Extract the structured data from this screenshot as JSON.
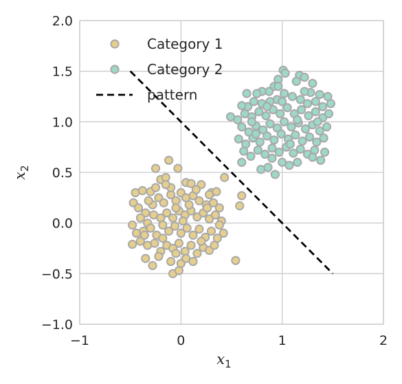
{
  "chart_data": {
    "type": "scatter",
    "title": "",
    "xlabel": {
      "base": "x",
      "sub": "1"
    },
    "ylabel": {
      "base": "x",
      "sub": "2"
    },
    "xlim": [
      -1,
      2
    ],
    "ylim": [
      -1,
      2
    ],
    "xticks": [
      -1,
      0,
      1,
      2
    ],
    "xtick_labels": [
      "−1",
      "0",
      "1",
      "2"
    ],
    "yticks": [
      -1,
      -0.5,
      0,
      0.5,
      1,
      1.5,
      2
    ],
    "ytick_labels": [
      "−1.0",
      "−0.5",
      "0.0",
      "0.5",
      "1.0",
      "1.5",
      "2.0"
    ],
    "grid": true,
    "legend_position": "top-left",
    "legend": [
      {
        "label": "Category 1",
        "kind": "marker",
        "color": "#e6cf8e"
      },
      {
        "label": "Category 2",
        "kind": "marker",
        "color": "#9dd8c8"
      },
      {
        "label": "pattern",
        "kind": "dashed-line",
        "color": "#000000"
      }
    ],
    "series": [
      {
        "name": "Category 1",
        "color": "#e6cf8e",
        "edge_color": "#a8a8a8",
        "points": [
          [
            -0.45,
            0.3
          ],
          [
            -0.38,
            0.32
          ],
          [
            -0.3,
            0.31
          ],
          [
            -0.25,
            0.54
          ],
          [
            -0.2,
            0.43
          ],
          [
            -0.15,
            0.45
          ],
          [
            -0.12,
            0.62
          ],
          [
            -0.03,
            0.54
          ],
          [
            0.05,
            0.4
          ],
          [
            0.1,
            0.39
          ],
          [
            0.2,
            0.38
          ],
          [
            0.3,
            0.3
          ],
          [
            0.35,
            0.31
          ],
          [
            0.43,
            0.45
          ],
          [
            -0.47,
            0.2
          ],
          [
            -0.42,
            0.15
          ],
          [
            -0.35,
            0.1
          ],
          [
            -0.28,
            0.18
          ],
          [
            -0.22,
            0.25
          ],
          [
            -0.17,
            0.2
          ],
          [
            -0.1,
            0.28
          ],
          [
            -0.05,
            0.22
          ],
          [
            0.0,
            0.3
          ],
          [
            0.05,
            0.25
          ],
          [
            0.12,
            0.27
          ],
          [
            0.18,
            0.22
          ],
          [
            0.25,
            0.18
          ],
          [
            0.32,
            0.2
          ],
          [
            0.38,
            0.15
          ],
          [
            -0.4,
            0.05
          ],
          [
            -0.33,
            0.0
          ],
          [
            -0.27,
            0.08
          ],
          [
            -0.2,
            0.05
          ],
          [
            -0.14,
            0.1
          ],
          [
            -0.08,
            0.05
          ],
          [
            -0.02,
            0.12
          ],
          [
            0.04,
            0.08
          ],
          [
            0.1,
            0.12
          ],
          [
            0.16,
            0.06
          ],
          [
            0.22,
            0.1
          ],
          [
            0.28,
            0.04
          ],
          [
            0.34,
            0.08
          ],
          [
            0.4,
            0.02
          ],
          [
            -0.48,
            -0.02
          ],
          [
            -0.44,
            -0.1
          ],
          [
            -0.37,
            -0.08
          ],
          [
            -0.3,
            -0.05
          ],
          [
            -0.24,
            -0.12
          ],
          [
            -0.18,
            -0.02
          ],
          [
            -0.12,
            -0.08
          ],
          [
            -0.06,
            -0.03
          ],
          [
            0.0,
            -0.1
          ],
          [
            0.06,
            -0.05
          ],
          [
            0.12,
            -0.12
          ],
          [
            0.18,
            -0.06
          ],
          [
            0.24,
            -0.14
          ],
          [
            0.3,
            -0.08
          ],
          [
            0.36,
            -0.15
          ],
          [
            0.42,
            -0.1
          ],
          [
            -0.48,
            -0.21
          ],
          [
            -0.4,
            -0.18
          ],
          [
            -0.33,
            -0.22
          ],
          [
            -0.26,
            -0.2
          ],
          [
            -0.2,
            -0.28
          ],
          [
            -0.14,
            -0.22
          ],
          [
            -0.08,
            -0.25
          ],
          [
            -0.02,
            -0.2
          ],
          [
            0.04,
            -0.28
          ],
          [
            0.1,
            -0.22
          ],
          [
            0.16,
            -0.3
          ],
          [
            0.22,
            -0.24
          ],
          [
            0.28,
            -0.27
          ],
          [
            0.33,
            -0.22
          ],
          [
            -0.35,
            -0.35
          ],
          [
            -0.28,
            -0.42
          ],
          [
            -0.22,
            -0.33
          ],
          [
            -0.1,
            -0.38
          ],
          [
            -0.05,
            -0.3
          ],
          [
            0.0,
            -0.4
          ],
          [
            0.05,
            -0.35
          ],
          [
            0.12,
            -0.38
          ],
          [
            -0.08,
            -0.5
          ],
          [
            -0.02,
            -0.47
          ],
          [
            0.54,
            -0.37
          ],
          [
            0.58,
            0.17
          ],
          [
            0.6,
            0.27
          ],
          [
            -0.25,
            0.35
          ],
          [
            -0.1,
            0.35
          ],
          [
            0.15,
            0.33
          ],
          [
            0.28,
            0.28
          ],
          [
            -0.32,
            0.22
          ],
          [
            0.08,
            0.18
          ],
          [
            -0.18,
            -0.15
          ],
          [
            0.2,
            -0.18
          ],
          [
            -0.36,
            -0.12
          ],
          [
            0.38,
            -0.02
          ],
          [
            0.02,
            0.02
          ],
          [
            -0.15,
            0.38
          ],
          [
            0.26,
            0.15
          ],
          [
            -0.05,
            0.15
          ]
        ]
      },
      {
        "name": "Category 2",
        "color": "#9dd8c8",
        "edge_color": "#a8a8a8",
        "points": [
          [
            1.01,
            1.51
          ],
          [
            1.03,
            1.48
          ],
          [
            1.17,
            1.46
          ],
          [
            1.22,
            1.44
          ],
          [
            1.14,
            1.4
          ],
          [
            0.96,
            1.42
          ],
          [
            0.92,
            1.35
          ],
          [
            0.87,
            1.3
          ],
          [
            0.8,
            1.3
          ],
          [
            0.75,
            1.28
          ],
          [
            0.65,
            1.28
          ],
          [
            1.3,
            1.38
          ],
          [
            1.28,
            1.29
          ],
          [
            1.37,
            1.27
          ],
          [
            1.45,
            1.25
          ],
          [
            1.48,
            1.18
          ],
          [
            1.4,
            1.15
          ],
          [
            1.33,
            1.2
          ],
          [
            1.25,
            1.18
          ],
          [
            1.18,
            1.22
          ],
          [
            1.1,
            1.25
          ],
          [
            1.02,
            1.28
          ],
          [
            0.95,
            1.22
          ],
          [
            0.88,
            1.2
          ],
          [
            0.8,
            1.18
          ],
          [
            0.72,
            1.2
          ],
          [
            0.66,
            1.15
          ],
          [
            0.6,
            1.16
          ],
          [
            0.49,
            1.05
          ],
          [
            0.56,
            1.02
          ],
          [
            0.63,
            1.08
          ],
          [
            0.7,
            1.05
          ],
          [
            0.77,
            1.1
          ],
          [
            0.84,
            1.06
          ],
          [
            0.91,
            1.12
          ],
          [
            0.98,
            1.08
          ],
          [
            1.05,
            1.14
          ],
          [
            1.12,
            1.08
          ],
          [
            1.19,
            1.12
          ],
          [
            1.26,
            1.06
          ],
          [
            1.33,
            1.1
          ],
          [
            1.4,
            1.04
          ],
          [
            1.46,
            1.08
          ],
          [
            0.6,
            0.95
          ],
          [
            0.67,
            0.9
          ],
          [
            0.74,
            0.96
          ],
          [
            0.81,
            0.92
          ],
          [
            0.88,
            0.98
          ],
          [
            0.95,
            0.94
          ],
          [
            1.02,
            1.0
          ],
          [
            1.09,
            0.95
          ],
          [
            1.16,
            0.99
          ],
          [
            1.23,
            0.93
          ],
          [
            1.3,
            0.97
          ],
          [
            1.37,
            0.91
          ],
          [
            1.44,
            0.95
          ],
          [
            0.57,
            0.83
          ],
          [
            0.64,
            0.78
          ],
          [
            0.71,
            0.84
          ],
          [
            0.78,
            0.8
          ],
          [
            0.85,
            0.86
          ],
          [
            0.92,
            0.82
          ],
          [
            0.99,
            0.88
          ],
          [
            1.06,
            0.83
          ],
          [
            1.13,
            0.87
          ],
          [
            1.2,
            0.81
          ],
          [
            1.27,
            0.85
          ],
          [
            1.34,
            0.8
          ],
          [
            1.41,
            0.84
          ],
          [
            0.62,
            0.71
          ],
          [
            0.69,
            0.66
          ],
          [
            0.76,
            0.72
          ],
          [
            0.83,
            0.68
          ],
          [
            0.9,
            0.74
          ],
          [
            0.97,
            0.7
          ],
          [
            1.04,
            0.75
          ],
          [
            1.11,
            0.69
          ],
          [
            1.18,
            0.73
          ],
          [
            1.25,
            0.68
          ],
          [
            1.32,
            0.72
          ],
          [
            0.6,
            0.6
          ],
          [
            0.79,
            0.53
          ],
          [
            0.86,
            0.55
          ],
          [
            0.93,
            0.48
          ],
          [
            1.0,
            0.6
          ],
          [
            1.07,
            0.57
          ],
          [
            1.15,
            0.6
          ],
          [
            1.3,
            0.65
          ],
          [
            1.38,
            0.62
          ],
          [
            1.42,
            0.7
          ],
          [
            0.7,
            1.0
          ],
          [
            0.85,
            1.15
          ],
          [
            1.0,
            1.2
          ],
          [
            1.15,
            1.02
          ],
          [
            1.22,
            1.3
          ],
          [
            0.9,
            0.64
          ],
          [
            1.08,
            0.78
          ],
          [
            0.74,
            0.88
          ],
          [
            1.35,
            1.0
          ],
          [
            0.96,
            1.35
          ]
        ]
      }
    ],
    "line": {
      "name": "pattern",
      "style": "dashed",
      "color": "#000000",
      "points": [
        [
          -0.5,
          1.5
        ],
        [
          1.5,
          -0.5
        ]
      ]
    }
  }
}
